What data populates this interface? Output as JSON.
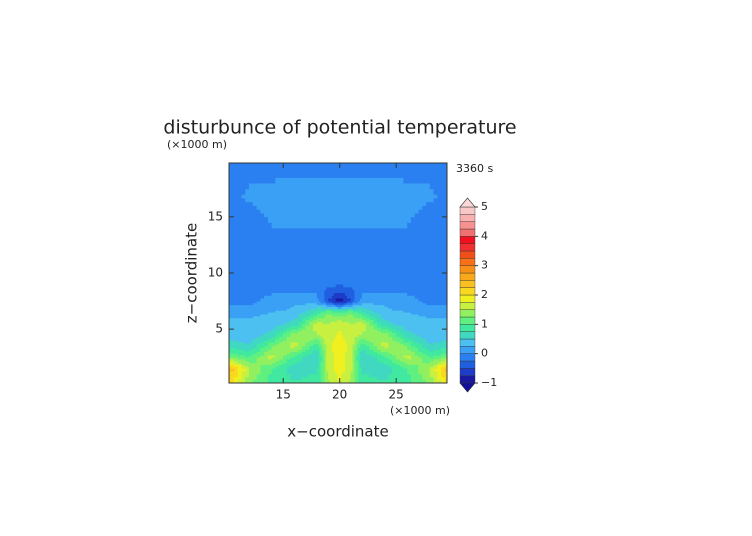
{
  "chart_data": {
    "type": "contour",
    "title": "disturbunce of potential temperature",
    "y_unit": "(×1000 m)",
    "time_label": "3360 s",
    "x_unit": "(×1000 m)",
    "x_label": "x−coordinate",
    "y_label": "z−coordinate",
    "xlim": [
      10.2,
      29.5
    ],
    "ylim": [
      0.2,
      19.8
    ],
    "xticks": [
      15,
      20,
      25
    ],
    "yticks": [
      5,
      10,
      15
    ],
    "x": [
      10,
      12,
      14,
      16,
      18,
      19,
      20,
      21,
      22,
      24,
      26,
      28,
      30
    ],
    "y": [
      0,
      1.5,
      2.5,
      3.5,
      4.5,
      5.5,
      6.5,
      7.5,
      9,
      12,
      15,
      17,
      20
    ],
    "z": [
      [
        2.2,
        1.3,
        0.9,
        0.8,
        0.9,
        1.4,
        1.7,
        1.4,
        0.9,
        0.8,
        0.9,
        1.3,
        2.2
      ],
      [
        2.6,
        1.5,
        1.0,
        0.6,
        0.7,
        1.6,
        1.9,
        1.6,
        0.7,
        0.6,
        1.0,
        1.5,
        2.6
      ],
      [
        1.3,
        1.0,
        1.6,
        0.9,
        0.5,
        1.6,
        1.9,
        1.6,
        0.5,
        0.9,
        1.6,
        1.0,
        1.3
      ],
      [
        0.7,
        0.5,
        1.2,
        1.6,
        0.8,
        1.7,
        1.9,
        1.7,
        0.8,
        1.6,
        1.2,
        0.5,
        0.7
      ],
      [
        0.4,
        0.35,
        0.6,
        1.4,
        1.5,
        1.6,
        1.8,
        1.6,
        1.5,
        1.4,
        0.6,
        0.35,
        0.4
      ],
      [
        0.3,
        0.3,
        0.35,
        0.6,
        1.6,
        1.5,
        1.7,
        1.5,
        1.6,
        0.6,
        0.35,
        0.3,
        0.3
      ],
      [
        0.2,
        0.2,
        0.25,
        0.3,
        0.8,
        1.2,
        1.0,
        1.2,
        0.8,
        0.3,
        0.25,
        0.2,
        0.2
      ],
      [
        -0.1,
        -0.1,
        0.1,
        0.2,
        0.1,
        -0.5,
        -0.9,
        -0.5,
        0.1,
        0.2,
        0.1,
        -0.1,
        -0.1
      ],
      [
        -0.15,
        -0.15,
        -0.15,
        -0.15,
        -0.15,
        -0.2,
        -0.2,
        -0.2,
        -0.15,
        -0.15,
        -0.15,
        -0.15,
        -0.15
      ],
      [
        -0.15,
        -0.15,
        -0.15,
        -0.15,
        -0.15,
        -0.15,
        -0.15,
        -0.15,
        -0.15,
        -0.15,
        -0.15,
        -0.15,
        -0.15
      ],
      [
        -0.15,
        -0.1,
        0.05,
        0.1,
        0.1,
        0.1,
        0.1,
        0.1,
        0.1,
        0.1,
        0.05,
        -0.1,
        -0.15
      ],
      [
        -0.1,
        0.05,
        0.1,
        0.15,
        0.15,
        0.15,
        0.15,
        0.15,
        0.15,
        0.15,
        0.1,
        0.05,
        -0.1
      ],
      [
        -0.15,
        -0.15,
        -0.15,
        -0.15,
        -0.15,
        -0.15,
        -0.15,
        -0.15,
        -0.15,
        -0.15,
        -0.15,
        -0.15,
        -0.15
      ]
    ],
    "levels": [
      -1,
      -0.75,
      -0.5,
      -0.25,
      0,
      0.25,
      0.5,
      0.75,
      1,
      1.25,
      1.5,
      1.75,
      2,
      2.25,
      2.5,
      2.75,
      3,
      3.25,
      3.5,
      3.75,
      4,
      4.25,
      4.5,
      4.75,
      5
    ],
    "colors": [
      "#1a1aa0",
      "#1e3cc8",
      "#2060e0",
      "#2a80f0",
      "#3aa0f5",
      "#4cc0f0",
      "#40d8c0",
      "#40e8a0",
      "#60f080",
      "#90f060",
      "#c8f040",
      "#f0f020",
      "#f8d820",
      "#f8c020",
      "#f8a818",
      "#f89018",
      "#f87018",
      "#f05018",
      "#f03030",
      "#f01020",
      "#f07070",
      "#f89090",
      "#f8b0b0",
      "#f8c8c8"
    ],
    "under_color": "#10109a",
    "over_color": "#fbd8d8",
    "cbar_ticks": [
      {
        "value": -1,
        "label": "−1"
      },
      0,
      1,
      2,
      3,
      4,
      5
    ]
  }
}
